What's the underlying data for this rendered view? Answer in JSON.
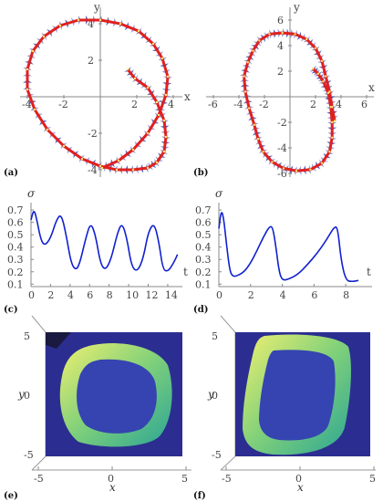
{
  "chart_data": [
    {
      "panel": "(a)",
      "type": "line",
      "xlabel": "x",
      "ylabel": "y",
      "xticks": [
        "-4",
        "-2",
        "2",
        "4"
      ],
      "yticks": [
        "-4",
        "-2",
        "2",
        "4"
      ],
      "xlim": [
        -4.5,
        4.5
      ],
      "ylim": [
        -4.5,
        4.5
      ],
      "trajectory": {
        "color": "#e02020",
        "x": [
          1.5,
          1.9,
          2.6,
          3.1,
          3.5,
          3.6,
          3.5,
          3.1,
          2.6,
          1.8,
          0.9,
          0.0,
          -1.0,
          -2.0,
          -2.9,
          -3.6,
          -4.0,
          -4.0,
          -3.7,
          -3.1,
          -2.2,
          -1.2,
          0.0,
          1.1,
          2.1,
          2.9,
          3.4,
          3.7,
          3.6,
          3.2,
          2.6,
          1.8,
          1.0,
          0.1
        ],
        "y": [
          1.5,
          1.0,
          0.5,
          -0.3,
          -1.3,
          -2.2,
          -3.0,
          -3.6,
          -3.9,
          -4.0,
          -4.0,
          -3.8,
          -3.4,
          -2.7,
          -1.8,
          -0.7,
          0.4,
          1.5,
          2.5,
          3.3,
          3.9,
          4.2,
          4.2,
          4.0,
          3.6,
          2.9,
          2.1,
          1.1,
          0.1,
          -1.0,
          -2.0,
          -2.9,
          -3.5,
          -3.9
        ]
      }
    },
    {
      "panel": "(b)",
      "type": "line",
      "xlabel": "x",
      "ylabel": "y",
      "xticks": [
        "-6",
        "-4",
        "-2",
        "2",
        "4",
        "6"
      ],
      "yticks": [
        "-6",
        "-4",
        "-2",
        "2",
        "4",
        "6"
      ],
      "xlim": [
        -6.5,
        6.5
      ],
      "ylim": [
        -6.5,
        6.5
      ],
      "trajectory": {
        "color": "#e02020",
        "x": [
          1.8,
          2.2,
          2.6,
          3.0,
          3.2,
          3.3,
          3.3,
          3.1,
          2.5,
          1.6,
          0.5,
          -0.5,
          -1.4,
          -2.1,
          -2.5,
          -2.8,
          -3.2,
          -3.5,
          -3.6,
          -3.3,
          -2.9,
          -2.4,
          -1.6,
          -0.6,
          0.4,
          1.3,
          2.0,
          2.5,
          2.8,
          3.1,
          3.3,
          3.5
        ],
        "y": [
          2.2,
          1.8,
          1.2,
          0.3,
          -0.8,
          -2.0,
          -3.2,
          -4.3,
          -5.2,
          -5.7,
          -5.8,
          -5.6,
          -5.1,
          -4.3,
          -3.3,
          -2.2,
          -0.9,
          0.4,
          1.6,
          2.7,
          3.6,
          4.4,
          4.9,
          5.0,
          4.9,
          4.5,
          3.8,
          2.8,
          1.6,
          0.4,
          -0.8,
          -1.9
        ]
      }
    },
    {
      "panel": "(c)",
      "type": "line",
      "xlabel": "t",
      "ylabel": "σ",
      "xticks": [
        "0",
        "2",
        "4",
        "6",
        "8",
        "10",
        "12",
        "14"
      ],
      "yticks": [
        "0.1",
        "0.2",
        "0.3",
        "0.4",
        "0.5",
        "0.6",
        "0.7"
      ],
      "xlim": [
        0,
        15.5
      ],
      "ylim": [
        0.08,
        0.76
      ],
      "series": [
        {
          "color": "#1020d0",
          "x": [
            0,
            0.3,
            0.6,
            1.0,
            1.4,
            2.0,
            2.6,
            3.1,
            3.6,
            4.1,
            4.6,
            5.0,
            5.6,
            6.1,
            6.6,
            7.1,
            7.6,
            8.2,
            8.8,
            9.3,
            9.8,
            10.3,
            10.9,
            11.5,
            12.0,
            12.6,
            13.1,
            13.5,
            14.0,
            14.6,
            15.0
          ],
          "y": [
            0.62,
            0.71,
            0.62,
            0.46,
            0.41,
            0.47,
            0.62,
            0.67,
            0.5,
            0.27,
            0.21,
            0.27,
            0.47,
            0.6,
            0.5,
            0.27,
            0.21,
            0.3,
            0.5,
            0.6,
            0.48,
            0.24,
            0.2,
            0.31,
            0.52,
            0.6,
            0.44,
            0.22,
            0.2,
            0.27,
            0.34
          ]
        }
      ]
    },
    {
      "panel": "(d)",
      "type": "line",
      "xlabel": "t",
      "ylabel": "σ",
      "xticks": [
        "0",
        "2",
        "4",
        "6",
        "8"
      ],
      "yticks": [
        "0.1",
        "0.2",
        "0.3",
        "0.4",
        "0.5",
        "0.6",
        "0.7"
      ],
      "xlim": [
        0,
        9.2
      ],
      "ylim": [
        0.08,
        0.76
      ],
      "series": [
        {
          "color": "#1020d0",
          "x": [
            0,
            0.15,
            0.3,
            0.5,
            0.7,
            0.9,
            1.2,
            1.6,
            2.0,
            2.4,
            2.8,
            3.2,
            3.4,
            3.6,
            3.8,
            4.0,
            4.4,
            5.0,
            5.6,
            6.2,
            6.8,
            7.3,
            7.5,
            7.7,
            8.0,
            8.4,
            8.8
          ],
          "y": [
            0.55,
            0.7,
            0.64,
            0.4,
            0.2,
            0.16,
            0.17,
            0.2,
            0.27,
            0.37,
            0.48,
            0.57,
            0.56,
            0.4,
            0.2,
            0.13,
            0.14,
            0.18,
            0.26,
            0.35,
            0.46,
            0.57,
            0.55,
            0.3,
            0.13,
            0.12,
            0.13
          ]
        }
      ]
    },
    {
      "panel": "(e)",
      "type": "heatmap",
      "xlabel": "x",
      "ylabel": "y",
      "xticks": [
        "-5",
        "0",
        "5"
      ],
      "yticks": [
        "-5",
        "0",
        "5"
      ],
      "xlim": [
        -5,
        5
      ],
      "ylim": [
        -5,
        5
      ],
      "colors": {
        "background": "#2a2c8a",
        "low": "#3a3fb0",
        "mid": "#2bb0a0",
        "high": "#e8e860"
      }
    },
    {
      "panel": "(f)",
      "type": "heatmap",
      "xlabel": "x",
      "ylabel": "y",
      "xticks": [
        "-5",
        "0",
        "5"
      ],
      "yticks": [
        "-5",
        "0",
        "5"
      ],
      "xlim": [
        -5,
        5
      ],
      "ylim": [
        -5,
        5
      ],
      "colors": {
        "background": "#2a2c8a",
        "low": "#3a3fb0",
        "mid": "#2bb0a0",
        "high": "#e8e860"
      }
    }
  ]
}
